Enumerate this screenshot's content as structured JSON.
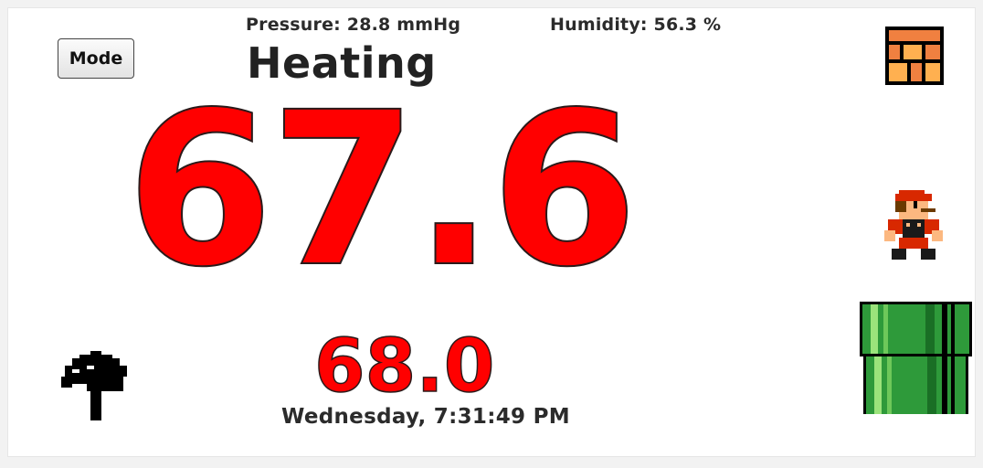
{
  "header": {
    "pressure": "Pressure: 28.8 mmHg",
    "humidity": "Humidity: 56.3 %"
  },
  "controls": {
    "mode_label": "Mode"
  },
  "status": {
    "mode": "Heating",
    "current_temperature": "67.6",
    "set_temperature": "68.0",
    "datetime": "Wednesday, 7:31:49 PM"
  },
  "icons": {
    "brick_block": "brick-block-icon",
    "mario": "mario-icon",
    "warp_pipe": "warp-pipe-icon",
    "hammer": "hammer-icon"
  },
  "colors": {
    "temperature": "#ff0000",
    "text": "#2b2b2b",
    "pipe_green": "#2e9a3a",
    "brick": "#ff9966"
  }
}
